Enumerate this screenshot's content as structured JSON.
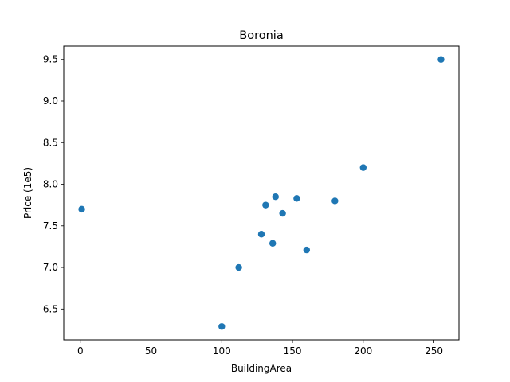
{
  "chart_data": {
    "type": "scatter",
    "title": "Boronia",
    "xlabel": "BuildingArea",
    "ylabel": "Price (1e5)",
    "xlim": [
      -11.7,
      267.7
    ],
    "ylim": [
      6.13,
      9.66
    ],
    "xticks": [
      0,
      50,
      100,
      150,
      200,
      250
    ],
    "yticks": [
      6.5,
      7.0,
      7.5,
      8.0,
      8.5,
      9.0,
      9.5
    ],
    "xtick_labels": [
      "0",
      "50",
      "100",
      "150",
      "200",
      "250"
    ],
    "ytick_labels": [
      "6.5",
      "7.0",
      "7.5",
      "8.0",
      "8.5",
      "9.0",
      "9.5"
    ],
    "grid": false,
    "series": [
      {
        "color": "#1f77b4",
        "points": [
          {
            "x": 1,
            "y": 7.7
          },
          {
            "x": 100,
            "y": 6.29
          },
          {
            "x": 112,
            "y": 7.0
          },
          {
            "x": 128,
            "y": 7.4
          },
          {
            "x": 131,
            "y": 7.75
          },
          {
            "x": 136,
            "y": 7.29
          },
          {
            "x": 138,
            "y": 7.85
          },
          {
            "x": 143,
            "y": 7.65
          },
          {
            "x": 153,
            "y": 7.83
          },
          {
            "x": 160,
            "y": 7.21
          },
          {
            "x": 180,
            "y": 7.8
          },
          {
            "x": 200,
            "y": 8.2
          },
          {
            "x": 255,
            "y": 9.5
          }
        ]
      }
    ]
  }
}
